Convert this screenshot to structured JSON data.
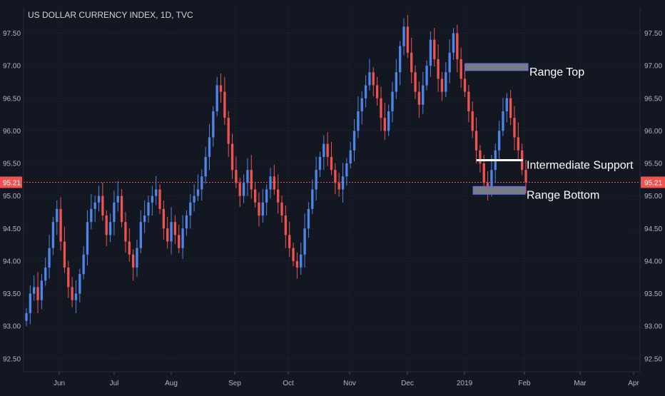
{
  "chart_data": {
    "type": "candlestick",
    "title": "US DOLLAR CURRENCY INDEX, 1D, TVC",
    "ylim": [
      92.3,
      97.9
    ],
    "y_ticks": [
      "92.50",
      "93.00",
      "93.50",
      "94.00",
      "94.50",
      "95.00",
      "95.50",
      "96.00",
      "96.50",
      "97.00",
      "97.50"
    ],
    "x_ticks": [
      "Jun",
      "Jul",
      "Aug",
      "Sep",
      "Oct",
      "Nov",
      "Dec",
      "2019",
      "Feb",
      "Mar",
      "Apr"
    ],
    "last_price": "95.21",
    "grid": true,
    "colors": {
      "up": "#4e86e8",
      "down": "#ef5350",
      "last_price": "#ef5350",
      "annotation_box": "#787b86"
    },
    "closes": [
      93.2,
      93.5,
      93.6,
      93.4,
      93.7,
      93.9,
      94.2,
      94.6,
      94.8,
      94.3,
      93.9,
      93.6,
      93.4,
      93.5,
      93.8,
      94.1,
      94.6,
      94.8,
      94.9,
      95.0,
      94.7,
      94.4,
      94.6,
      94.9,
      95.0,
      94.6,
      94.3,
      94.1,
      93.9,
      94.2,
      94.6,
      94.7,
      94.9,
      95.0,
      95.1,
      94.8,
      94.5,
      94.3,
      94.6,
      94.4,
      94.2,
      94.5,
      94.7,
      94.9,
      95.0,
      95.1,
      95.3,
      95.6,
      95.9,
      96.3,
      96.7,
      96.6,
      96.2,
      95.8,
      95.4,
      95.2,
      95.0,
      95.2,
      95.4,
      95.1,
      94.9,
      94.7,
      94.9,
      95.1,
      95.3,
      95.1,
      94.9,
      94.7,
      94.4,
      94.2,
      94.0,
      93.9,
      94.1,
      94.5,
      94.8,
      95.1,
      95.4,
      95.6,
      95.8,
      95.6,
      95.4,
      95.2,
      95.1,
      95.3,
      95.5,
      95.7,
      96.0,
      96.3,
      96.5,
      96.7,
      96.9,
      96.7,
      96.5,
      96.2,
      96.0,
      96.3,
      96.6,
      96.9,
      97.3,
      97.6,
      97.2,
      96.9,
      96.6,
      96.4,
      96.7,
      97.0,
      97.4,
      97.1,
      96.8,
      96.6,
      96.9,
      97.2,
      97.5,
      97.1,
      96.8,
      96.6,
      96.3,
      96.0,
      95.7,
      95.5,
      95.2,
      95.1,
      95.4,
      95.7,
      96.0,
      96.3,
      96.5,
      96.2,
      95.9,
      95.7,
      95.4,
      95.21
    ],
    "annotations": [
      {
        "text": "Range Top",
        "value": 96.98
      },
      {
        "text": "Intermediate Support",
        "value": 95.55
      },
      {
        "text": "Range Bottom",
        "value": 95.08
      }
    ]
  }
}
